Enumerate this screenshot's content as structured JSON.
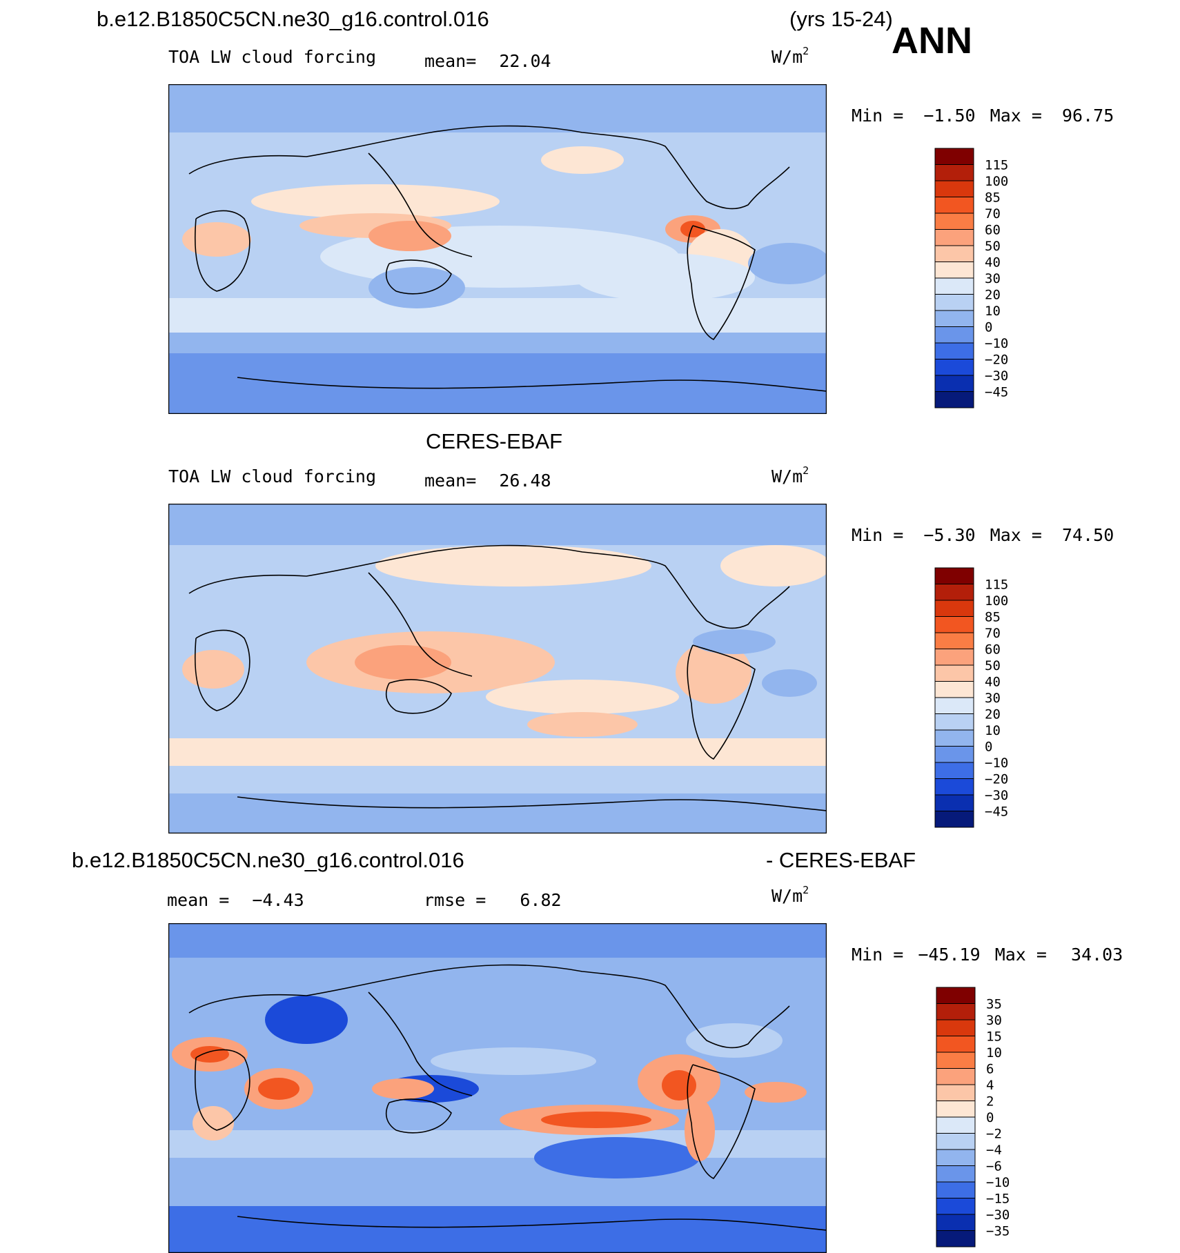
{
  "header": {
    "case_name": "b.e12.B1850C5CN.ne30_g16.control.016",
    "years": "(yrs 15-24)",
    "season": "ANN"
  },
  "panels": [
    {
      "id": "model",
      "left_label": "TOA LW cloud forcing",
      "stat_label": "mean=",
      "stat_value": "22.04",
      "units_base": "W/m",
      "units_exp": "2",
      "min_label": "Min =",
      "min_value": "−1.50",
      "max_label": "Max =",
      "max_value": "96.75",
      "colorbar_ticks": [
        "115",
        "100",
        "85",
        "70",
        "60",
        "50",
        "40",
        "30",
        "20",
        "10",
        "0",
        "−10",
        "−20",
        "−30",
        "−45"
      ]
    },
    {
      "id": "obs",
      "title": "CERES-EBAF",
      "left_label": "TOA LW cloud forcing",
      "stat_label": "mean=",
      "stat_value": "26.48",
      "units_base": "W/m",
      "units_exp": "2",
      "min_label": "Min =",
      "min_value": "−5.30",
      "max_label": "Max =",
      "max_value": "74.50",
      "colorbar_ticks": [
        "115",
        "100",
        "85",
        "70",
        "60",
        "50",
        "40",
        "30",
        "20",
        "10",
        "0",
        "−10",
        "−20",
        "−30",
        "−45"
      ]
    },
    {
      "id": "diff",
      "title_left": "b.e12.B1850C5CN.ne30_g16.control.016",
      "title_right": "- CERES-EBAF",
      "mean_label": "mean =",
      "mean_value": "−4.43",
      "rmse_label": "rmse =",
      "rmse_value": "6.82",
      "units_base": "W/m",
      "units_exp": "2",
      "min_label": "Min =",
      "min_value": "−45.19",
      "max_label": "Max =",
      "max_value": "34.03",
      "colorbar_ticks": [
        "35",
        "30",
        "15",
        "10",
        "6",
        "4",
        "2",
        "0",
        "−2",
        "−4",
        "−6",
        "−10",
        "−15",
        "−30",
        "−35"
      ]
    }
  ],
  "colors": {
    "abs_scale": [
      "#7f0000",
      "#b31f0a",
      "#d9380d",
      "#f25621",
      "#fa7d45",
      "#fba27c",
      "#fcc6a8",
      "#fde6d4",
      "#dbe8f8",
      "#b9d1f3",
      "#92b5ee",
      "#6a95ea",
      "#3d6ee6",
      "#1b4ad9",
      "#0a2fb0",
      "#061a7a"
    ],
    "diff_scale": [
      "#7f0000",
      "#b31f0a",
      "#d9380d",
      "#f25621",
      "#fa7d45",
      "#fba27c",
      "#fcc6a8",
      "#fde6d4",
      "#dbe8f8",
      "#b9d1f3",
      "#92b5ee",
      "#6a95ea",
      "#3d6ee6",
      "#1b4ad9",
      "#0a2fb0",
      "#061a7a"
    ]
  }
}
